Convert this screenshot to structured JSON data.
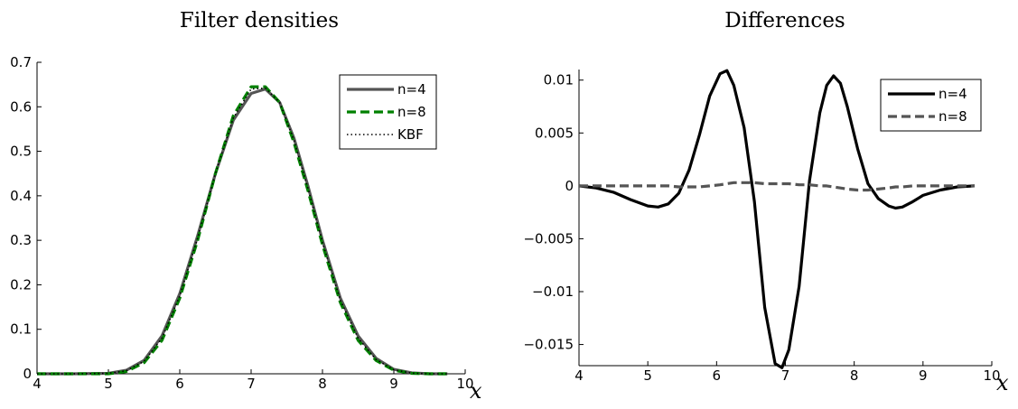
{
  "chart_data": [
    {
      "type": "line",
      "title": "Filter densities",
      "xlabel": "x",
      "ylabel": "",
      "xlim": [
        4,
        10
      ],
      "ylim": [
        0,
        0.7
      ],
      "xticks": [
        "4",
        "5",
        "6",
        "7",
        "8",
        "9",
        "10"
      ],
      "yticks": [
        "0",
        "0.1",
        "0.2",
        "0.3",
        "0.4",
        "0.5",
        "0.6",
        "0.7"
      ],
      "grid": false,
      "legend_position": "top-right",
      "x": [
        4.0,
        4.5,
        5.0,
        5.25,
        5.5,
        5.75,
        6.0,
        6.25,
        6.5,
        6.75,
        7.0,
        7.2,
        7.4,
        7.6,
        7.8,
        8.0,
        8.25,
        8.5,
        8.75,
        9.0,
        9.25,
        9.5,
        9.75
      ],
      "series": [
        {
          "name": "n=4",
          "color": "#555555",
          "style": "solid",
          "values": [
            0.0,
            0.0,
            0.001,
            0.008,
            0.03,
            0.085,
            0.18,
            0.31,
            0.45,
            0.57,
            0.63,
            0.64,
            0.61,
            0.53,
            0.42,
            0.3,
            0.17,
            0.085,
            0.035,
            0.01,
            0.002,
            0.0,
            0.0
          ]
        },
        {
          "name": "n=8",
          "color": "#008000",
          "style": "dashed",
          "values": [
            0.0,
            0.0,
            0.0,
            0.005,
            0.025,
            0.075,
            0.17,
            0.3,
            0.45,
            0.58,
            0.645,
            0.645,
            0.61,
            0.52,
            0.41,
            0.29,
            0.16,
            0.075,
            0.03,
            0.008,
            0.001,
            0.0,
            0.0
          ]
        },
        {
          "name": "KBF",
          "color": "#000000",
          "style": "dotted",
          "values": [
            0.0,
            0.0,
            0.001,
            0.007,
            0.028,
            0.08,
            0.175,
            0.305,
            0.45,
            0.575,
            0.64,
            0.642,
            0.61,
            0.525,
            0.415,
            0.295,
            0.165,
            0.08,
            0.032,
            0.009,
            0.0015,
            0.0,
            0.0
          ]
        }
      ]
    },
    {
      "type": "line",
      "title": "Differences",
      "xlabel": "x",
      "ylabel": "",
      "xlim": [
        4,
        10
      ],
      "ylim": [
        -0.017,
        0.011
      ],
      "xticks": [
        "4",
        "5",
        "6",
        "7",
        "8",
        "9",
        "10"
      ],
      "yticks": [
        "0.01",
        "0.005",
        "0",
        "−0.005",
        "−0.01",
        "−0.015"
      ],
      "grid": false,
      "legend_position": "top-right",
      "x": [
        4.0,
        4.25,
        4.5,
        4.75,
        5.0,
        5.15,
        5.3,
        5.45,
        5.6,
        5.75,
        5.9,
        6.05,
        6.15,
        6.25,
        6.4,
        6.55,
        6.7,
        6.85,
        6.95,
        7.05,
        7.2,
        7.35,
        7.5,
        7.6,
        7.7,
        7.8,
        7.9,
        8.05,
        8.2,
        8.35,
        8.5,
        8.6,
        8.7,
        8.85,
        9.0,
        9.25,
        9.5,
        9.75
      ],
      "series": [
        {
          "name": "n=4",
          "color": "#000000",
          "style": "solid",
          "values": [
            0.0,
            -0.0002,
            -0.0006,
            -0.0013,
            -0.0019,
            -0.002,
            -0.0017,
            -0.0007,
            0.0015,
            0.0048,
            0.0085,
            0.0106,
            0.0109,
            0.0095,
            0.0055,
            -0.0015,
            -0.0115,
            -0.0168,
            -0.0172,
            -0.0155,
            -0.0095,
            0.0005,
            0.0069,
            0.0095,
            0.0104,
            0.0097,
            0.0075,
            0.0035,
            0.0002,
            -0.0012,
            -0.0019,
            -0.0021,
            -0.002,
            -0.0015,
            -0.0009,
            -0.0004,
            -0.0001,
            0.0
          ]
        },
        {
          "name": "n=8",
          "color": "#555555",
          "style": "dashed",
          "values": [
            0.0,
            0.0,
            0.0,
            0.0,
            0.0,
            0.0,
            0.0,
            -0.0001,
            -0.0001,
            -0.0001,
            0.0,
            0.0001,
            0.0002,
            0.0003,
            0.0003,
            0.0003,
            0.0002,
            0.0002,
            0.0002,
            0.0002,
            0.0001,
            0.0001,
            0.0,
            0.0,
            -0.0001,
            -0.0002,
            -0.0003,
            -0.0004,
            -0.0004,
            -0.0003,
            -0.0002,
            -0.0001,
            -0.0001,
            0.0,
            0.0,
            0.0,
            0.0,
            0.0
          ]
        }
      ]
    }
  ]
}
